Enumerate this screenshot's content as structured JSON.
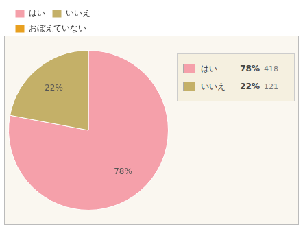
{
  "chart_data": {
    "type": "pie",
    "categories": [
      "はい",
      "いいえ",
      "おぼえていない"
    ],
    "values": [
      78,
      22,
      null
    ],
    "value_labels": [
      "78%",
      "22%",
      null
    ],
    "counts": [
      418,
      121,
      null
    ],
    "colors": [
      "#f5a0aa",
      "#c4b068",
      "#e8a020"
    ],
    "data_labels": true,
    "legend": "top"
  }
}
